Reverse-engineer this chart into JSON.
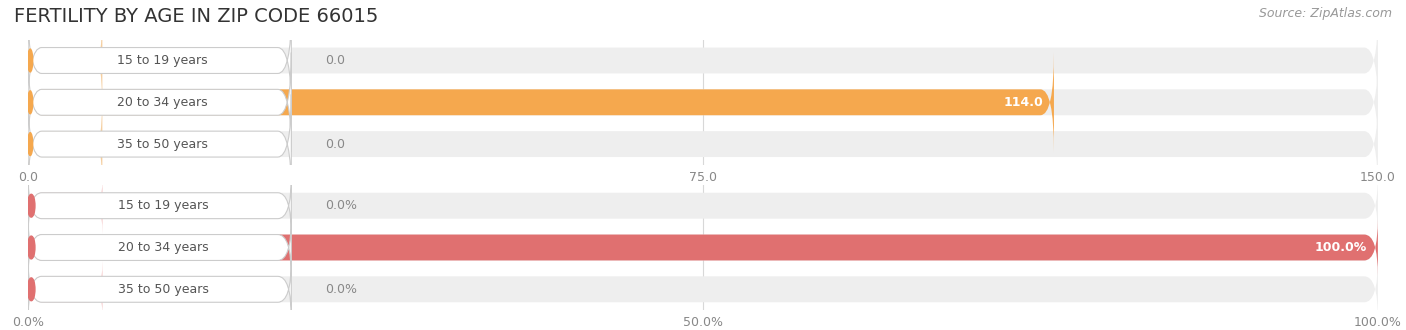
{
  "title": "FERTILITY BY AGE IN ZIP CODE 66015",
  "source": "Source: ZipAtlas.com",
  "top_chart": {
    "categories": [
      "15 to 19 years",
      "20 to 34 years",
      "35 to 50 years"
    ],
    "values": [
      0.0,
      114.0,
      0.0
    ],
    "xlim": [
      0,
      150
    ],
    "xticks": [
      0.0,
      75.0,
      150.0
    ],
    "xtick_labels": [
      "0.0",
      "75.0",
      "150.0"
    ],
    "bar_color": "#F5A84E",
    "bar_bg_color": "#EEEEEE",
    "zero_bar_color": "#F5CFA0"
  },
  "bottom_chart": {
    "categories": [
      "15 to 19 years",
      "20 to 34 years",
      "35 to 50 years"
    ],
    "values": [
      0.0,
      100.0,
      0.0
    ],
    "xlim": [
      0,
      100
    ],
    "xticks": [
      0.0,
      50.0,
      100.0
    ],
    "xtick_labels": [
      "0.0%",
      "50.0%",
      "100.0%"
    ],
    "bar_color": "#E07070",
    "bar_bg_color": "#EEEEEE",
    "zero_bar_color": "#F0AAAA"
  },
  "bg_color": "#FFFFFF",
  "grid_color": "#D8D8D8",
  "title_fontsize": 14,
  "source_fontsize": 9,
  "label_fontsize": 9,
  "tick_fontsize": 9,
  "label_text_color": "#555555",
  "value_color_outside": "#888888",
  "value_color_inside": "#FFFFFF"
}
